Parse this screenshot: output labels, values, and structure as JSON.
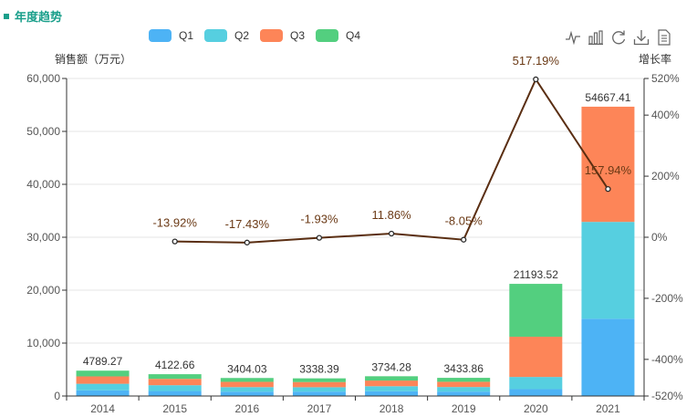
{
  "title": "年度趋势",
  "toolbox": {
    "items": [
      {
        "name": "line-chart-icon",
        "title": "折线图"
      },
      {
        "name": "bar-chart-icon",
        "title": "柱状图"
      },
      {
        "name": "restore-icon",
        "title": "还原"
      },
      {
        "name": "download-icon",
        "title": "保存为图片"
      },
      {
        "name": "data-view-icon",
        "title": "数据视图"
      }
    ]
  },
  "colors": {
    "Q1": "#4db3f5",
    "Q2": "#56cfe0",
    "Q3": "#fd8558",
    "Q4": "#53cf7f",
    "line": "#5a2e12",
    "title": "#1a9f8b"
  },
  "chart_data": {
    "type": "bar",
    "categories": [
      "2014",
      "2015",
      "2016",
      "2017",
      "2018",
      "2019",
      "2020",
      "2021"
    ],
    "series": [
      {
        "name": "Q1",
        "values": [
          1080,
          940,
          820,
          830,
          900,
          830,
          1300,
          14600
        ]
      },
      {
        "name": "Q2",
        "values": [
          1230,
          1100,
          860,
          830,
          950,
          870,
          2300,
          18300
        ]
      },
      {
        "name": "Q3",
        "values": [
          1400,
          1200,
          1000,
          980,
          1070,
          990,
          7600,
          21767.41
        ]
      },
      {
        "name": "Q4",
        "values": [
          1079.27,
          882.66,
          724.03,
          698.39,
          814.28,
          743.86,
          9993.52,
          0
        ]
      }
    ],
    "totals": [
      4789.27,
      4122.66,
      3404.03,
      3338.39,
      3734.28,
      3433.86,
      21193.52,
      54667.41
    ],
    "total_labels": [
      "4789.27",
      "4122.66",
      "3404.03",
      "3338.39",
      "3734.28",
      "3433.86",
      "21193.52",
      "54667.41"
    ],
    "line": {
      "name": "增长率",
      "values": [
        null,
        -13.92,
        -17.43,
        -1.93,
        11.86,
        -8.05,
        517.19,
        157.94
      ],
      "labels": [
        "",
        "-13.92%",
        "-17.43%",
        "-1.93%",
        "11.86%",
        "-8.05%",
        "517.19%",
        "157.94%"
      ]
    },
    "ylabel": "销售额（万元）",
    "y2label": "增长率",
    "ylim": [
      0,
      60000
    ],
    "yticks": [
      "0",
      "10,000",
      "20,000",
      "30,000",
      "40,000",
      "50,000",
      "60,000"
    ],
    "y2lim": [
      -520,
      520
    ],
    "y2tick_values": [
      -520,
      -400,
      -200,
      0,
      200,
      400,
      520
    ],
    "y2ticks": [
      "-520%",
      "-400%",
      "-200%",
      "0%",
      "200%",
      "400%",
      "520%"
    ]
  }
}
